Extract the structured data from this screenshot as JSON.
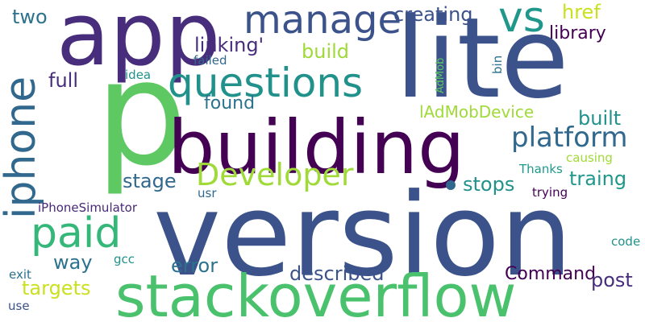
{
  "words": [
    {
      "text": "p",
      "color": "#5ec962"
    },
    {
      "text": "version",
      "color": "#3b528b"
    },
    {
      "text": "lite",
      "color": "#3b528b"
    },
    {
      "text": "app",
      "color": "#472d7b"
    },
    {
      "text": "building",
      "color": "#440154"
    },
    {
      "text": "stackoverflow",
      "color": "#4ac16d"
    },
    {
      "text": "questions",
      "color": "#21918c"
    },
    {
      "text": "manage",
      "color": "#3b528b"
    },
    {
      "text": "vs",
      "color": "#1f988b"
    },
    {
      "text": "iphone",
      "color": "#31688e"
    },
    {
      "text": "Developer",
      "color": "#a0da39"
    },
    {
      "text": "paid",
      "color": "#35b779"
    },
    {
      "text": "platform",
      "color": "#31688e"
    },
    {
      "text": "creating",
      "color": "#3b528b"
    },
    {
      "text": "href",
      "color": "#cae11f"
    },
    {
      "text": "library",
      "color": "#440154"
    },
    {
      "text": "linking'",
      "color": "#472d7b"
    },
    {
      "text": "build",
      "color": "#a0da39"
    },
    {
      "text": "two",
      "color": "#2c728e"
    },
    {
      "text": "full",
      "color": "#472d7b"
    },
    {
      "text": "found",
      "color": "#2c728e"
    },
    {
      "text": "lAdMobDevice",
      "color": "#a0da39"
    },
    {
      "text": "built",
      "color": "#21918c"
    },
    {
      "text": "stage",
      "color": "#31688e"
    },
    {
      "text": "stops",
      "color": "#21918c"
    },
    {
      "text": "traing",
      "color": "#1f988b"
    },
    {
      "text": "error",
      "color": "#2c728e"
    },
    {
      "text": "described",
      "color": "#3b528b"
    },
    {
      "text": "Command",
      "color": "#440154"
    },
    {
      "text": "post",
      "color": "#472d7b"
    },
    {
      "text": "way",
      "color": "#2c728e"
    },
    {
      "text": "targets",
      "color": "#cae11f"
    },
    {
      "text": "iPhoneSimulator",
      "color": "#482878"
    },
    {
      "text": "gcc",
      "color": "#21918c"
    },
    {
      "text": "exit",
      "color": "#2c728e"
    },
    {
      "text": "use",
      "color": "#3b528b"
    },
    {
      "text": "usr",
      "color": "#31688e"
    },
    {
      "text": "Thanks",
      "color": "#1f988b"
    },
    {
      "text": "trying",
      "color": "#440154"
    },
    {
      "text": "causing",
      "color": "#a0da39"
    },
    {
      "text": "code",
      "color": "#21918c"
    },
    {
      "text": "idea",
      "color": "#21918c"
    },
    {
      "text": "failed",
      "color": "#31688e"
    },
    {
      "text": "AdMob",
      "color": "#5ec962"
    },
    {
      "text": "bin",
      "color": "#2c728e"
    }
  ],
  "dot_color": "#31688e"
}
